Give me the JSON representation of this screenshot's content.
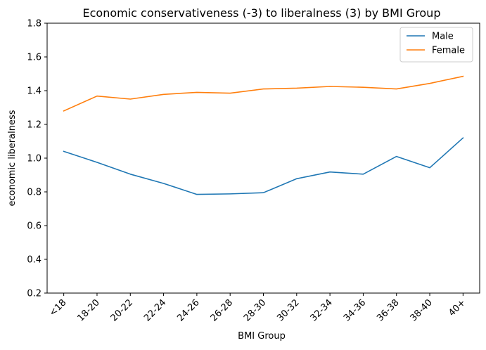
{
  "chart_data": {
    "type": "line",
    "title": "Economic conservativeness (-3) to liberalness (3) by BMI Group",
    "xlabel": "BMI Group",
    "ylabel": "economic liberalness",
    "categories": [
      "<18",
      "18-20",
      "20-22",
      "22-24",
      "24-26",
      "26-28",
      "28-30",
      "30-32",
      "32-34",
      "34-36",
      "36-38",
      "38-40",
      "40+"
    ],
    "ylim": [
      0.2,
      1.8
    ],
    "yticks": [
      0.2,
      0.4,
      0.6,
      0.8,
      1.0,
      1.2,
      1.4,
      1.6,
      1.8
    ],
    "ytick_labels": [
      "0.2",
      "0.4",
      "0.6",
      "0.8",
      "1.0",
      "1.2",
      "1.4",
      "1.6",
      "1.8"
    ],
    "grid": false,
    "legend_position": "top-right",
    "series": [
      {
        "name": "Male",
        "color": "#1f77b4",
        "values": [
          1.04,
          0.975,
          0.905,
          0.85,
          0.785,
          0.788,
          0.795,
          0.878,
          0.918,
          0.905,
          1.01,
          0.943,
          1.12
        ]
      },
      {
        "name": "Female",
        "color": "#ff7f0e",
        "values": [
          1.28,
          1.368,
          1.35,
          1.378,
          1.39,
          1.385,
          1.41,
          1.415,
          1.425,
          1.42,
          1.41,
          1.443,
          1.485
        ]
      }
    ]
  }
}
